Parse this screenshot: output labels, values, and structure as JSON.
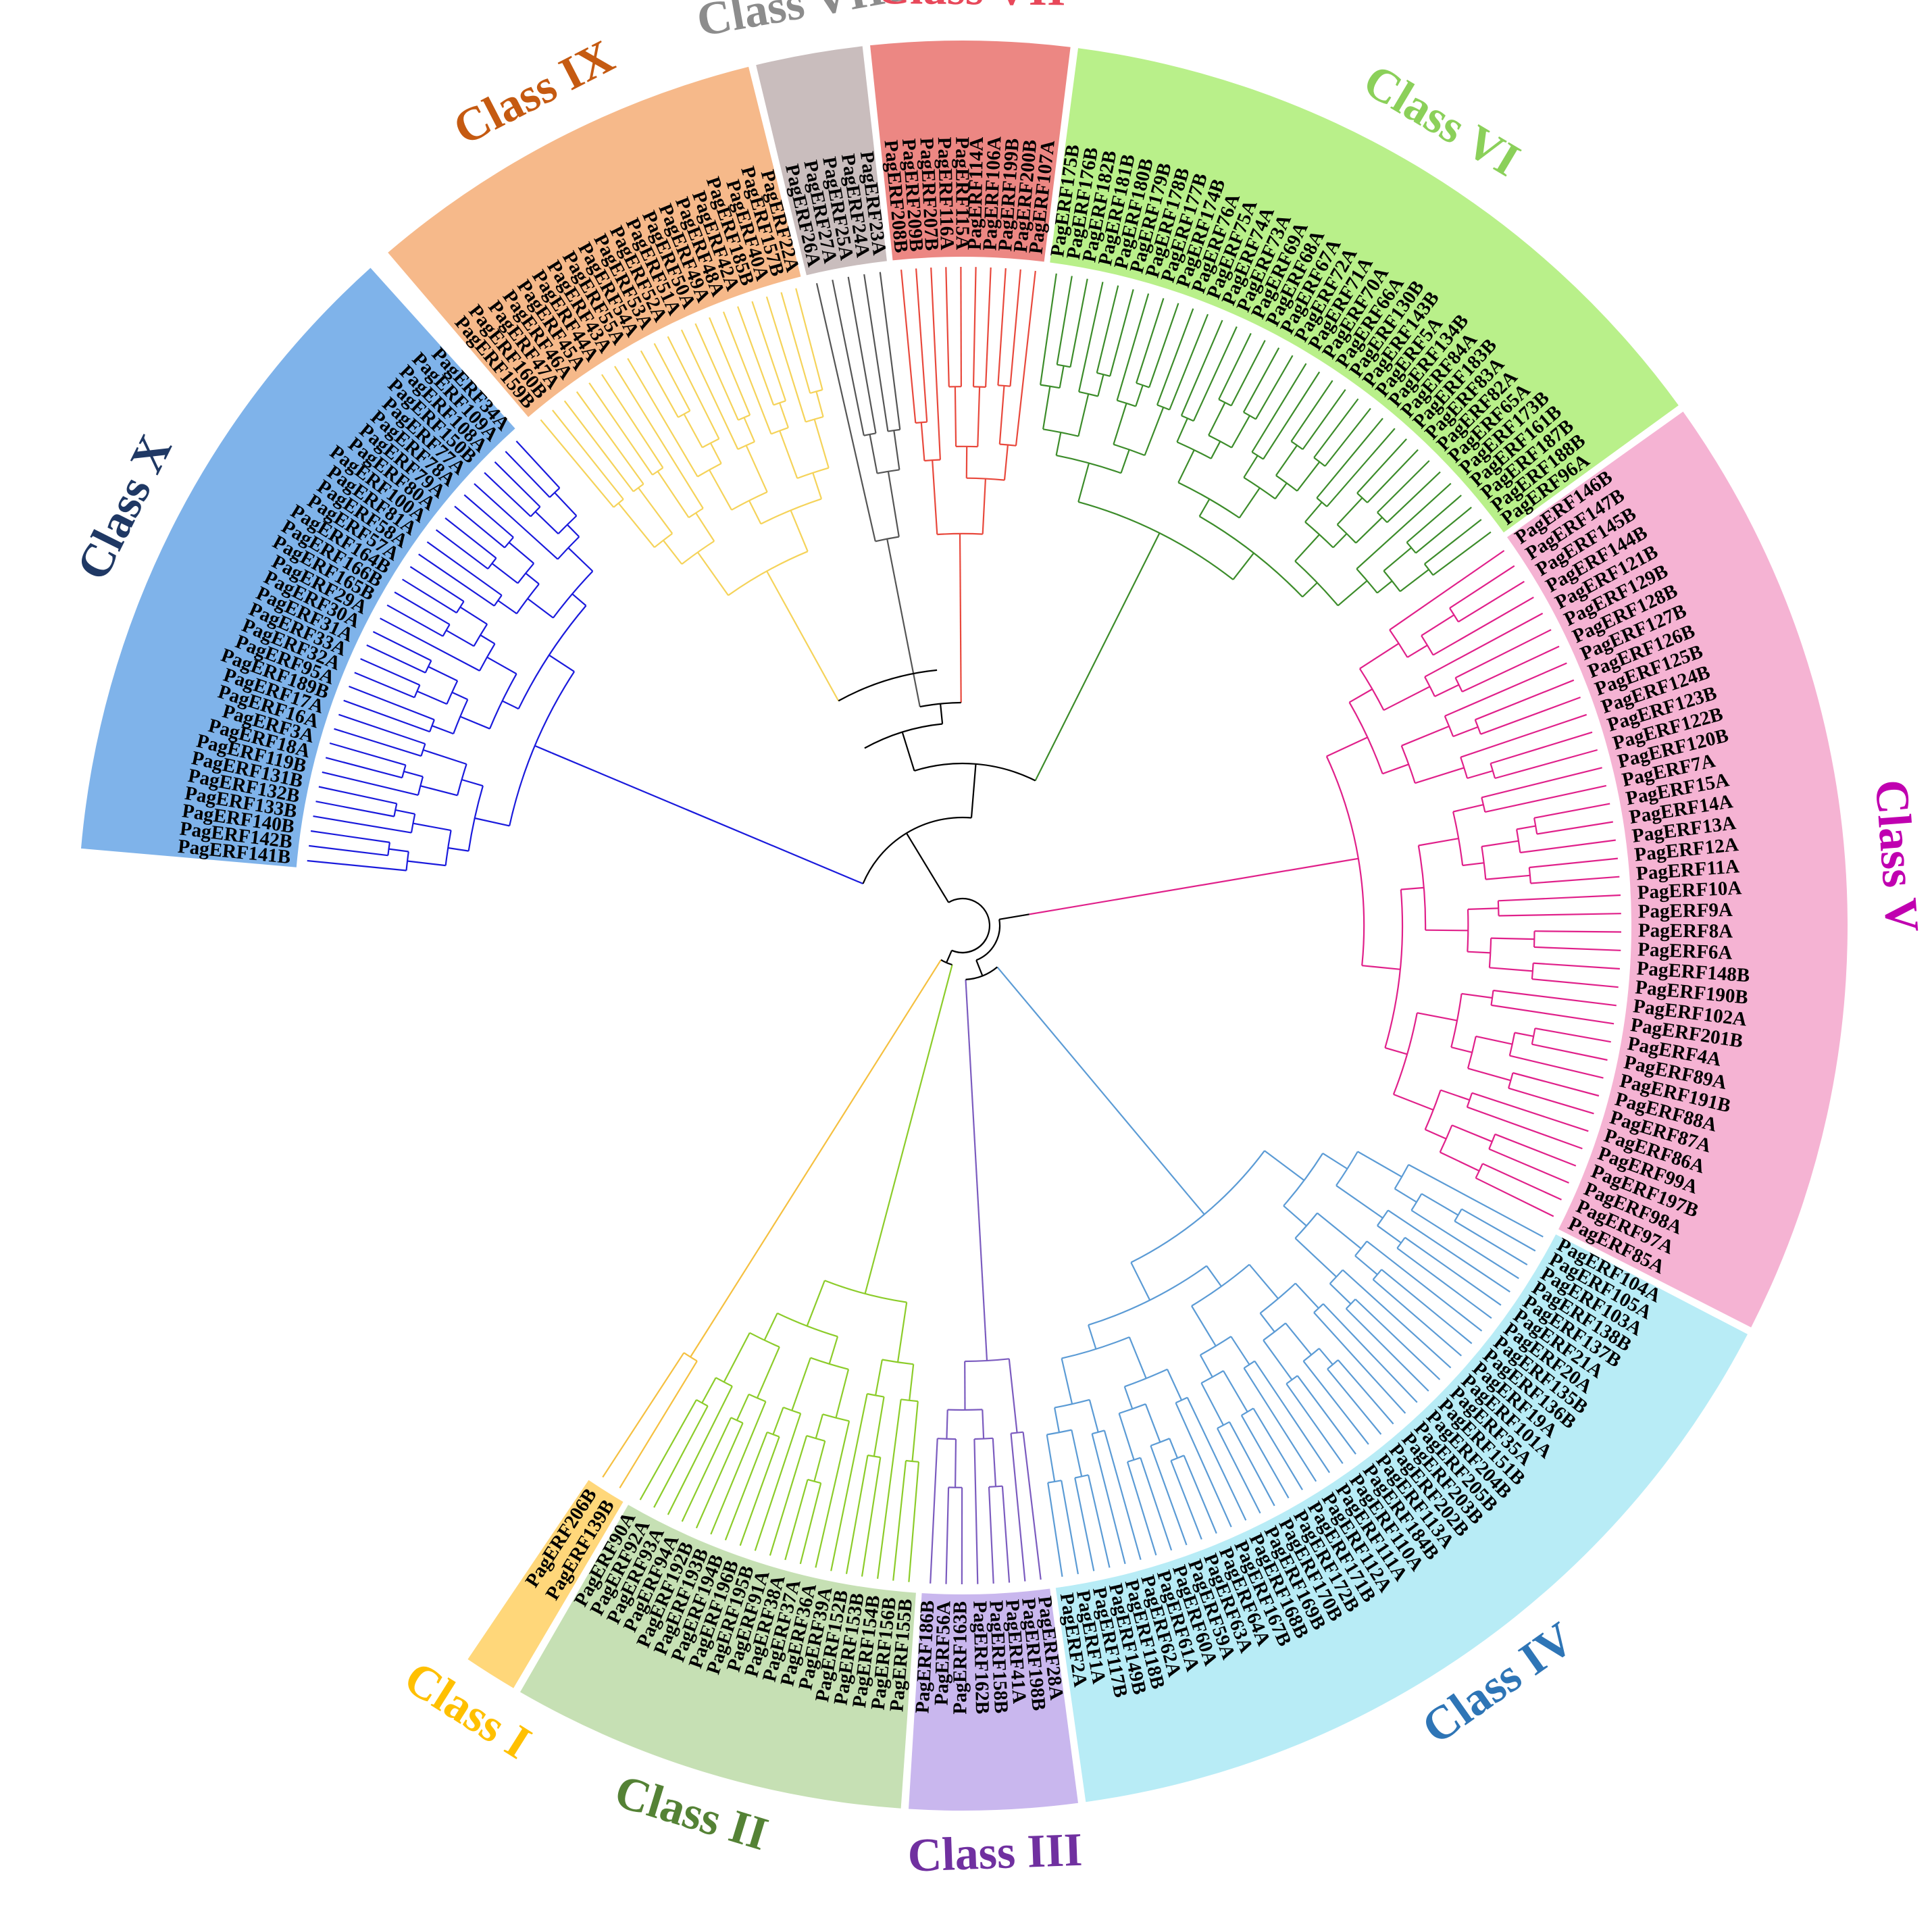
{
  "classes": [
    {
      "id": "class-x",
      "label": "Class X",
      "color": "#1a1adc",
      "band": "#7fb3ea",
      "labelColor": "#1f3864",
      "leaves": [
        "PagERF141B",
        "PagERF142B",
        "PagERF140B",
        "PagERF133B",
        "PagERF132B",
        "PagERF131B",
        "PagERF119B",
        "PagERF18A",
        "PagERF3A",
        "PagERF16A",
        "PagERF17A",
        "PagERF189B",
        "PagERF95A",
        "PagERF32A",
        "PagERF33A",
        "PagERF31A",
        "PagERF30A",
        "PagERF29A",
        "PagERF165B",
        "PagERF166B",
        "PagERF164B",
        "PagERF57A",
        "PagERF58A",
        "PagERF81A",
        "PagERF100A",
        "PagERF80A",
        "PagERF79A",
        "PagERF78A",
        "PagERF77A",
        "PagERF150B",
        "PagERF108A",
        "PagERF109A",
        "PagERF34A"
      ]
    },
    {
      "id": "class-ix",
      "label": "Class IX",
      "color": "#f5d35a",
      "band": "#f6b98a",
      "labelColor": "#c55a11",
      "leaves": [
        "PagERF159B",
        "PagERF160B",
        "PagERF47A",
        "PagERF46A",
        "PagERF45A",
        "PagERF44A",
        "PagERF43A",
        "PagERF55A",
        "PagERF54A",
        "PagERF53A",
        "PagERF52A",
        "PagERF51A",
        "PagERF50A",
        "PagERF49A",
        "PagERF48A",
        "PagERF42A",
        "PagERF185B",
        "PagERF40A",
        "PagERF157B",
        "PagERF22A"
      ]
    },
    {
      "id": "class-viii",
      "label": "Class VIII",
      "color": "#555555",
      "band": "#c9bdbd",
      "labelColor": "#8c8c8c",
      "leaves": [
        "PagERF26A",
        "PagERF27A",
        "PagERF25A",
        "PagERF24A",
        "PagERF23A"
      ]
    },
    {
      "id": "class-vii",
      "label": "Class VII",
      "color": "#e8483c",
      "band": "#ec8783",
      "labelColor": "#e8485a",
      "leaves": [
        "PagERF208B",
        "PagERF209B",
        "PagERF207B",
        "PagERF116A",
        "PagERF115A",
        "PagERF114A",
        "PagERF106A",
        "PagERF199B",
        "PagERF200B",
        "PagERF107A"
      ]
    },
    {
      "id": "class-vi",
      "label": "Class VI",
      "color": "#3c8c2a",
      "band": "#b9f08a",
      "labelColor": "#8bd05a",
      "leaves": [
        "PagERF175B",
        "PagERF176B",
        "PagERF182B",
        "PagERF181B",
        "PagERF180B",
        "PagERF179B",
        "PagERF178B",
        "PagERF177B",
        "PagERF174B",
        "PagERF76A",
        "PagERF75A",
        "PagERF74A",
        "PagERF73A",
        "PagERF69A",
        "PagERF68A",
        "PagERF67A",
        "PagERF72A",
        "PagERF71A",
        "PagERF70A",
        "PagERF66A",
        "PagERF130B",
        "PagERF143B",
        "PagERF5A",
        "PagERF134B",
        "PagERF84A",
        "PagERF183B",
        "PagERF83A",
        "PagERF82A",
        "PagERF65A",
        "PagERF173B",
        "PagERF161B",
        "PagERF187B",
        "PagERF188B",
        "PagERF96A"
      ]
    },
    {
      "id": "class-v",
      "label": "Class V",
      "color": "#e0208a",
      "band": "#f5b3d3",
      "labelColor": "#c000b0",
      "leaves": [
        "PagERF146B",
        "PagERF147B",
        "PagERF145B",
        "PagERF144B",
        "PagERF121B",
        "PagERF129B",
        "PagERF128B",
        "PagERF127B",
        "PagERF126B",
        "PagERF125B",
        "PagERF124B",
        "PagERF123B",
        "PagERF122B",
        "PagERF120B",
        "PagERF7A",
        "PagERF15A",
        "PagERF14A",
        "PagERF13A",
        "PagERF12A",
        "PagERF11A",
        "PagERF10A",
        "PagERF9A",
        "PagERF8A",
        "PagERF6A",
        "PagERF148B",
        "PagERF190B",
        "PagERF102A",
        "PagERF201B",
        "PagERF4A",
        "PagERF89A",
        "PagERF191B",
        "PagERF88A",
        "PagERF87A",
        "PagERF86A",
        "PagERF99A",
        "PagERF197B",
        "PagERF98A",
        "PagERF97A",
        "PagERF85A"
      ]
    },
    {
      "id": "class-iv",
      "label": "Class IV",
      "color": "#5b9bd5",
      "band": "#b8ecf6",
      "labelColor": "#2e75b6",
      "leaves": [
        "PagERF104A",
        "PagERF105A",
        "PagERF103A",
        "PagERF138B",
        "PagERF137B",
        "PagERF21A",
        "PagERF20A",
        "PagERF135B",
        "PagERF136B",
        "PagERF19A",
        "PagERF101A",
        "PagERF35A",
        "PagERF151B",
        "PagERF204B",
        "PagERF205B",
        "PagERF203B",
        "PagERF202B",
        "PagERF113A",
        "PagERF184B",
        "PagERF110A",
        "PagERF111A",
        "PagERF112A",
        "PagERF171B",
        "PagERF172B",
        "PagERF170B",
        "PagERF169B",
        "PagERF168B",
        "PagERF167B",
        "PagERF64A",
        "PagERF63A",
        "PagERF59A",
        "PagERF60A",
        "PagERF61A",
        "PagERF62A",
        "PagERF118B",
        "PagERF149B",
        "PagERF117B",
        "PagERF1A",
        "PagERF2A"
      ]
    },
    {
      "id": "class-iii",
      "label": "Class III",
      "color": "#7b5bbf",
      "band": "#c9b7ee",
      "labelColor": "#7030a0",
      "leaves": [
        "PagERF28A",
        "PagERF198B",
        "PagERF41A",
        "PagERF158B",
        "PagERF162B",
        "PagERF163B",
        "PagERF56A",
        "PagERF186B"
      ]
    },
    {
      "id": "class-ii",
      "label": "Class II",
      "color": "#8ccc2a",
      "band": "#c6e0b4",
      "labelColor": "#548235",
      "leaves": [
        "PagERF155B",
        "PagERF156B",
        "PagERF154B",
        "PagERF153B",
        "PagERF152B",
        "PagERF39A",
        "PagERF36A",
        "PagERF37A",
        "PagERF38A",
        "PagERF91A",
        "PagERF195B",
        "PagERF196B",
        "PagERF194B",
        "PagERF193B",
        "PagERF192B",
        "PagERF94A",
        "PagERF93A",
        "PagERF92A",
        "PagERF90A"
      ]
    },
    {
      "id": "class-i",
      "label": "Class I",
      "color": "#f5c040",
      "band": "#ffd77a",
      "labelColor": "#ffc000",
      "leaves": [
        "PagERF139B",
        "PagERF206B"
      ]
    }
  ]
}
